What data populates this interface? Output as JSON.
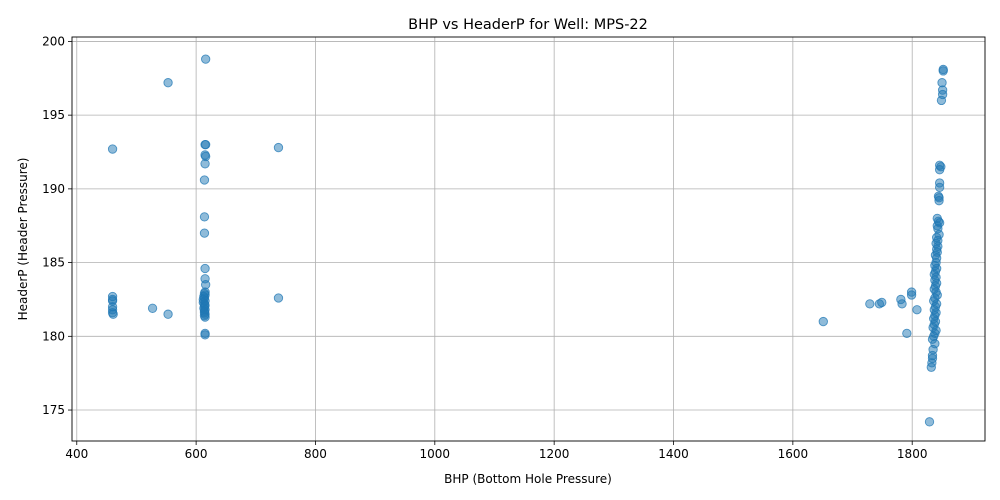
{
  "chart_data": {
    "type": "scatter",
    "title": "BHP vs HeaderP for Well: MPS-22",
    "xlabel": "BHP (Bottom Hole Pressure)",
    "ylabel": "HeaderP (Header Pressure)",
    "xlim": [
      392,
      1922
    ],
    "ylim": [
      172.9,
      200.3
    ],
    "xticks": [
      400,
      600,
      800,
      1000,
      1200,
      1400,
      1600,
      1800
    ],
    "yticks": [
      175,
      180,
      185,
      190,
      195,
      200
    ],
    "grid": true,
    "marker_color": "#1f77b4",
    "marker_alpha": 0.5,
    "points": [
      [
        460,
        192.7
      ],
      [
        460,
        182.7
      ],
      [
        460,
        182.5
      ],
      [
        460,
        182.4
      ],
      [
        460,
        182.0
      ],
      [
        460,
        181.8
      ],
      [
        460,
        181.6
      ],
      [
        461,
        181.5
      ],
      [
        527,
        181.9
      ],
      [
        553,
        197.2
      ],
      [
        553,
        181.5
      ],
      [
        616,
        198.8
      ],
      [
        615,
        193.0
      ],
      [
        616,
        193.0
      ],
      [
        615,
        192.3
      ],
      [
        616,
        192.2
      ],
      [
        615,
        191.7
      ],
      [
        614,
        190.6
      ],
      [
        614,
        188.1
      ],
      [
        614,
        187.0
      ],
      [
        615,
        184.6
      ],
      [
        615,
        183.9
      ],
      [
        616,
        183.5
      ],
      [
        615,
        183.0
      ],
      [
        614,
        182.9
      ],
      [
        615,
        182.8
      ],
      [
        613,
        182.7
      ],
      [
        614,
        182.6
      ],
      [
        612,
        182.5
      ],
      [
        615,
        182.4
      ],
      [
        612,
        182.3
      ],
      [
        614,
        182.2
      ],
      [
        615,
        182.1
      ],
      [
        614,
        182.0
      ],
      [
        613,
        181.9
      ],
      [
        615,
        181.8
      ],
      [
        614,
        181.7
      ],
      [
        614,
        181.6
      ],
      [
        615,
        181.5
      ],
      [
        614,
        181.4
      ],
      [
        615,
        181.3
      ],
      [
        615,
        180.2
      ],
      [
        615,
        180.1
      ],
      [
        738,
        192.8
      ],
      [
        738,
        182.6
      ],
      [
        1651,
        181.0
      ],
      [
        1729,
        182.2
      ],
      [
        1745,
        182.2
      ],
      [
        1749,
        182.3
      ],
      [
        1781,
        182.5
      ],
      [
        1783,
        182.2
      ],
      [
        1791,
        180.2
      ],
      [
        1799,
        183.0
      ],
      [
        1799,
        182.8
      ],
      [
        1808,
        181.8
      ],
      [
        1829,
        174.2
      ],
      [
        1852,
        198.1
      ],
      [
        1852,
        198.0
      ],
      [
        1850,
        197.2
      ],
      [
        1851,
        196.7
      ],
      [
        1851,
        196.4
      ],
      [
        1849,
        196.0
      ],
      [
        1846,
        191.6
      ],
      [
        1848,
        191.5
      ],
      [
        1846,
        191.3
      ],
      [
        1846,
        190.4
      ],
      [
        1846,
        190.1
      ],
      [
        1844,
        189.5
      ],
      [
        1845,
        189.4
      ],
      [
        1845,
        189.2
      ],
      [
        1842,
        188.0
      ],
      [
        1844,
        187.8
      ],
      [
        1846,
        187.7
      ],
      [
        1842,
        187.5
      ],
      [
        1843,
        187.3
      ],
      [
        1845,
        186.9
      ],
      [
        1841,
        186.7
      ],
      [
        1843,
        186.5
      ],
      [
        1840,
        186.3
      ],
      [
        1843,
        186.1
      ],
      [
        1841,
        185.9
      ],
      [
        1842,
        185.7
      ],
      [
        1839,
        185.5
      ],
      [
        1841,
        185.3
      ],
      [
        1840,
        185.0
      ],
      [
        1838,
        184.8
      ],
      [
        1841,
        184.6
      ],
      [
        1839,
        184.4
      ],
      [
        1837,
        184.2
      ],
      [
        1840,
        184.0
      ],
      [
        1838,
        183.8
      ],
      [
        1841,
        183.6
      ],
      [
        1839,
        183.4
      ],
      [
        1837,
        183.2
      ],
      [
        1840,
        183.0
      ],
      [
        1842,
        182.8
      ],
      [
        1838,
        182.6
      ],
      [
        1836,
        182.4
      ],
      [
        1841,
        182.2
      ],
      [
        1839,
        182.0
      ],
      [
        1837,
        181.8
      ],
      [
        1840,
        181.6
      ],
      [
        1838,
        181.4
      ],
      [
        1836,
        181.2
      ],
      [
        1839,
        181.0
      ],
      [
        1837,
        180.8
      ],
      [
        1835,
        180.6
      ],
      [
        1840,
        180.4
      ],
      [
        1838,
        180.2
      ],
      [
        1836,
        180.0
      ],
      [
        1834,
        179.8
      ],
      [
        1838,
        179.5
      ],
      [
        1835,
        179.1
      ],
      [
        1834,
        178.7
      ],
      [
        1834,
        178.5
      ],
      [
        1833,
        178.2
      ],
      [
        1832,
        177.9
      ]
    ]
  }
}
